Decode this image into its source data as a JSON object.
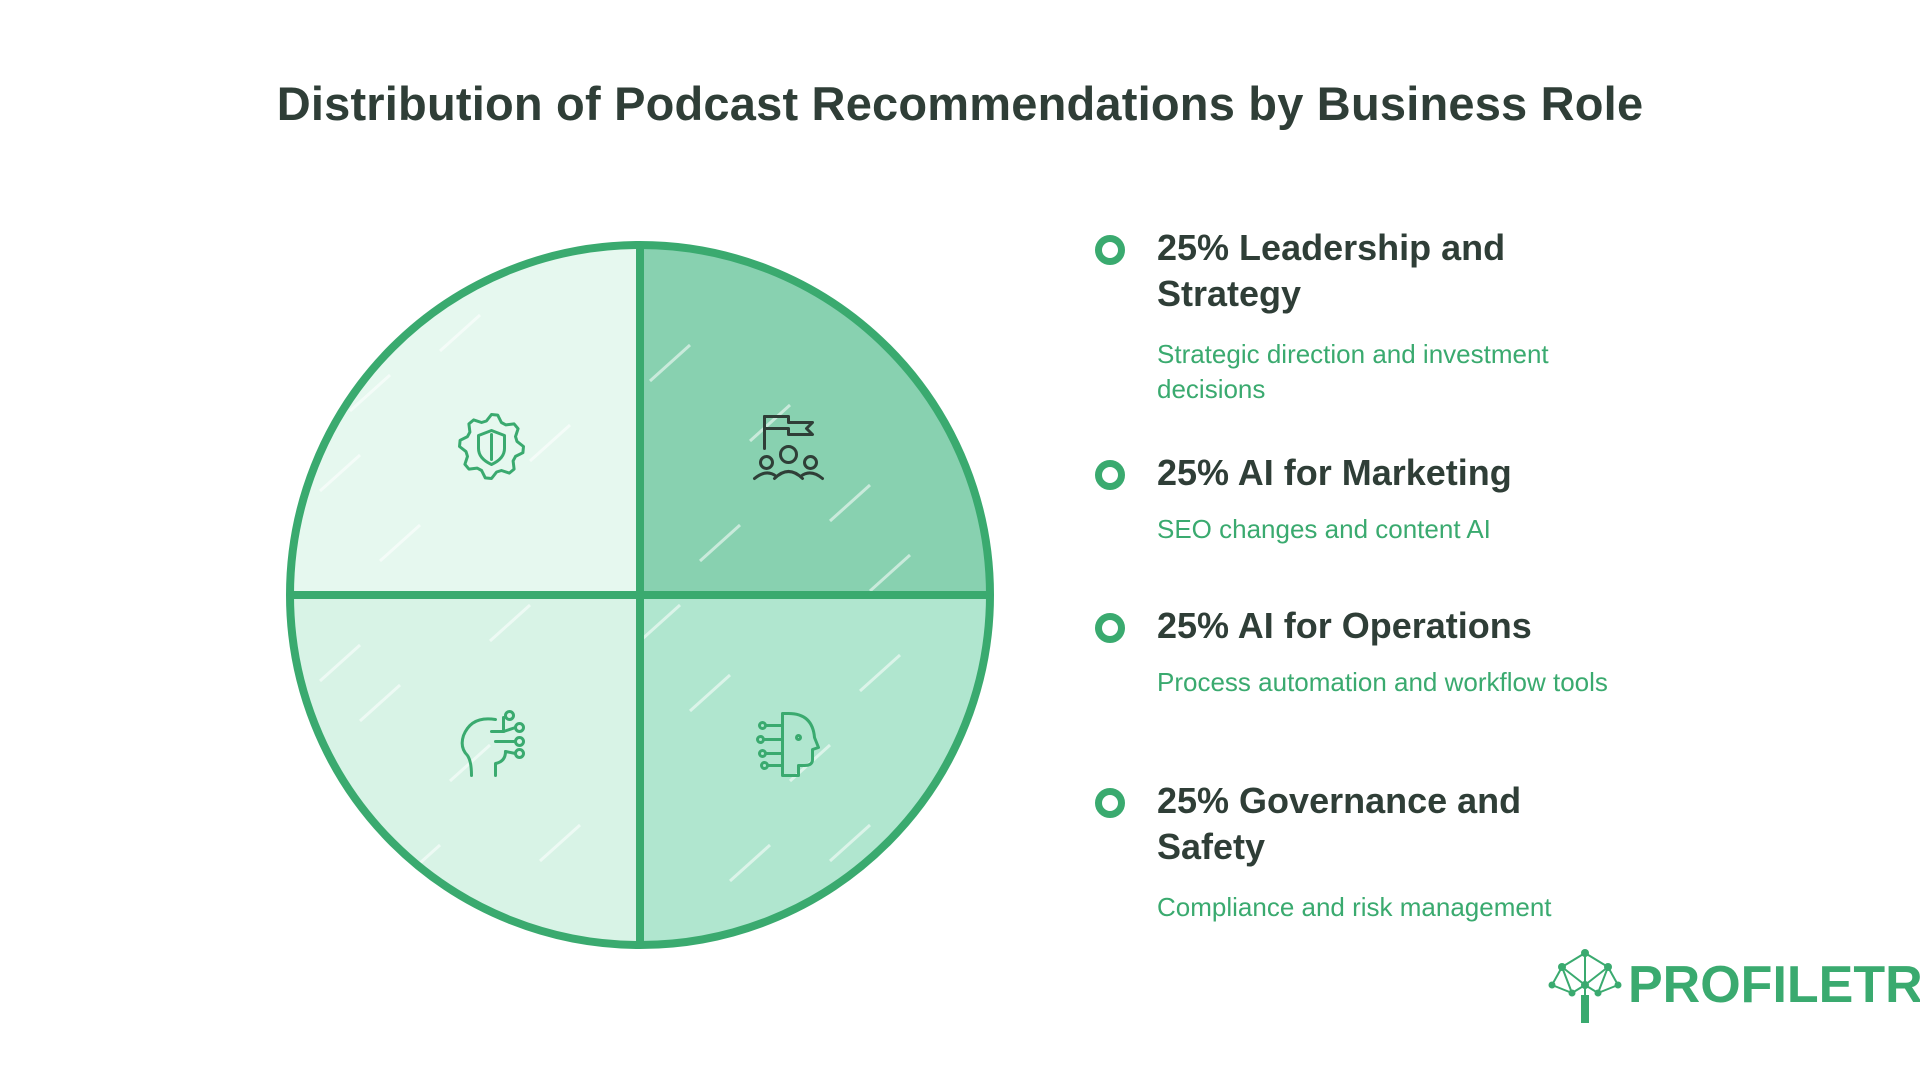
{
  "title": "Distribution of Podcast Recommendations by Business Role",
  "colors": {
    "accent": "#3aaa6f",
    "text_dark": "#2f3e37",
    "slice_top_left": "#e6f8ef",
    "slice_top_right": "#88d1b0",
    "slice_bottom_left": "#d8f3e6",
    "slice_bottom_right": "#b0e6cf"
  },
  "chart_data": {
    "type": "pie",
    "title": "Distribution of Podcast Recommendations by Business Role",
    "slices": [
      {
        "label": "Leadership and Strategy",
        "value": 25,
        "color": "#88d1b0",
        "icon": "flag-team-icon"
      },
      {
        "label": "AI for Marketing",
        "value": 25,
        "color": "#b0e6cf",
        "icon": "ai-head-icon"
      },
      {
        "label": "AI for Operations",
        "value": 25,
        "color": "#d8f3e6",
        "icon": "brain-circuit-icon"
      },
      {
        "label": "Governance and Safety",
        "value": 25,
        "color": "#e6f8ef",
        "icon": "gear-shield-icon"
      }
    ],
    "legend_placement": "right"
  },
  "legend": [
    {
      "heading": "25% Leadership and Strategy",
      "description": "Strategic direction and investment decisions"
    },
    {
      "heading": "25% AI for Marketing",
      "description": "SEO changes and content AI"
    },
    {
      "heading": "25% AI for Operations",
      "description": "Process automation and workflow tools"
    },
    {
      "heading": "25% Governance and Safety",
      "description": "Compliance and risk management"
    }
  ],
  "logo": {
    "part1": "PROFILE",
    "part2": "TREE"
  }
}
